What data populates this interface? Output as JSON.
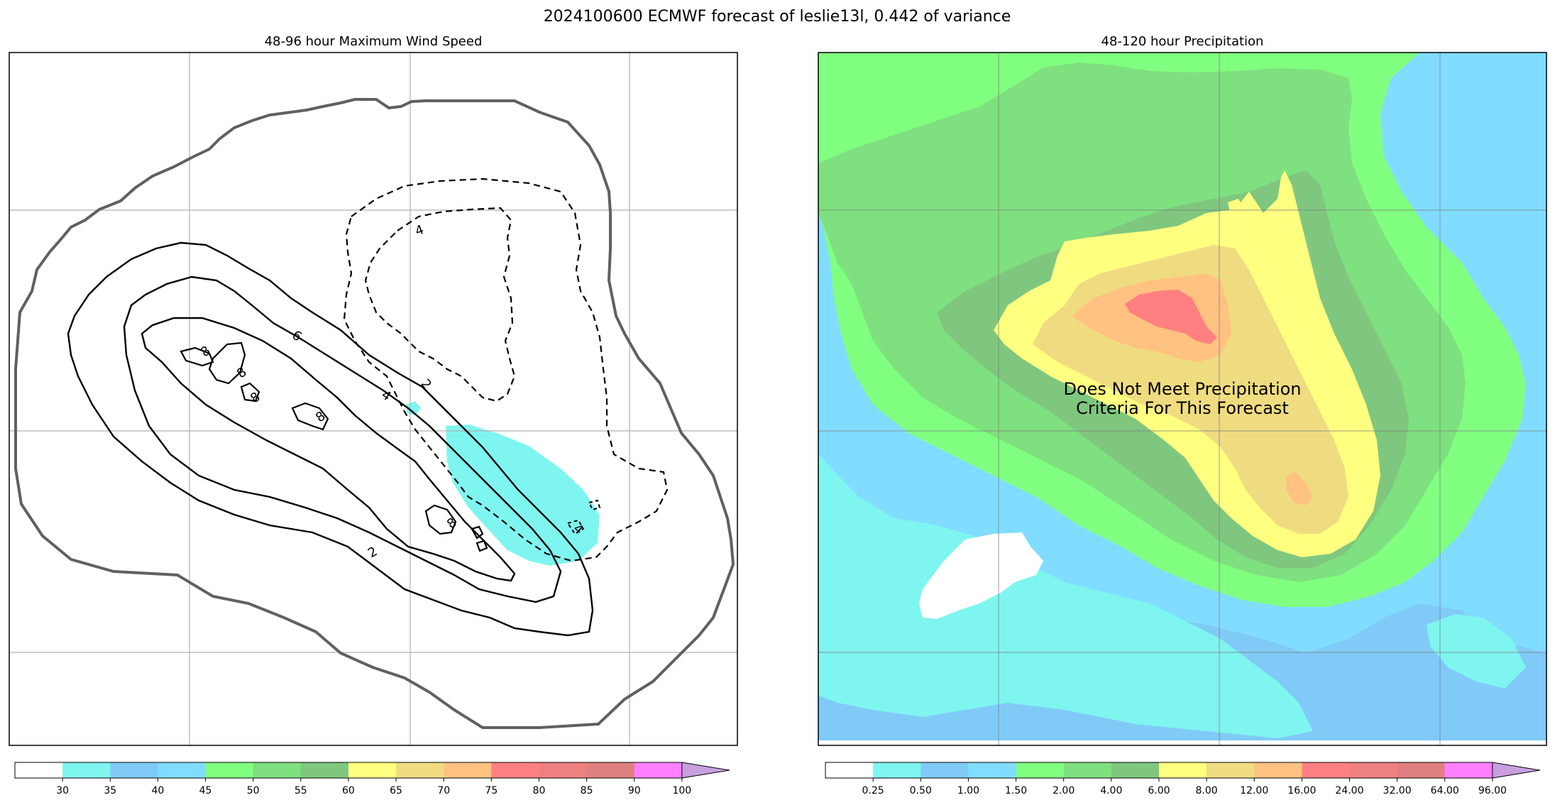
{
  "figure": {
    "title": "2024100600 ECMWF forecast of leslie13l, 0.442 of variance"
  },
  "chart_data": [
    {
      "type": "heatmap",
      "title": "48-96 hour Maximum Wind Speed",
      "contour_labels": [
        "8",
        "8",
        "8",
        "8",
        "8",
        "6",
        "4",
        "4",
        "2",
        "2",
        "4"
      ],
      "colorbar": {
        "colors": [
          "#ffffff",
          "#7ff5f0",
          "#80caf7",
          "#80ddff",
          "#80ff80",
          "#7fe07f",
          "#7fc77f",
          "#ffff80",
          "#f0dc80",
          "#ffc280",
          "#ff8080",
          "#ef8080",
          "#e08080",
          "#ff80ff",
          "#c8a0e0"
        ],
        "tick_labels": [
          "30",
          "35",
          "40",
          "45",
          "50",
          "55",
          "60",
          "65",
          "70",
          "75",
          "80",
          "85",
          "90",
          "100"
        ],
        "extend": "max"
      },
      "grid": true
    },
    {
      "type": "heatmap",
      "title": "48-120 hour Precipitation",
      "annotation": [
        "Does Not Meet Precipitation",
        "Criteria For This Forecast"
      ],
      "colorbar": {
        "colors": [
          "#ffffff",
          "#7ff5f0",
          "#80caf7",
          "#80ddff",
          "#80ff80",
          "#7fe07f",
          "#7fc77f",
          "#ffff80",
          "#f0dc80",
          "#ffc280",
          "#ff8080",
          "#ef8080",
          "#e08080",
          "#ff80ff",
          "#c8a0e0"
        ],
        "tick_labels": [
          "0.25",
          "0.50",
          "1.00",
          "1.50",
          "2.00",
          "4.00",
          "6.00",
          "8.00",
          "12.00",
          "16.00",
          "24.00",
          "32.00",
          "64.00",
          "96.00"
        ],
        "extend": "max"
      },
      "grid": true
    }
  ]
}
